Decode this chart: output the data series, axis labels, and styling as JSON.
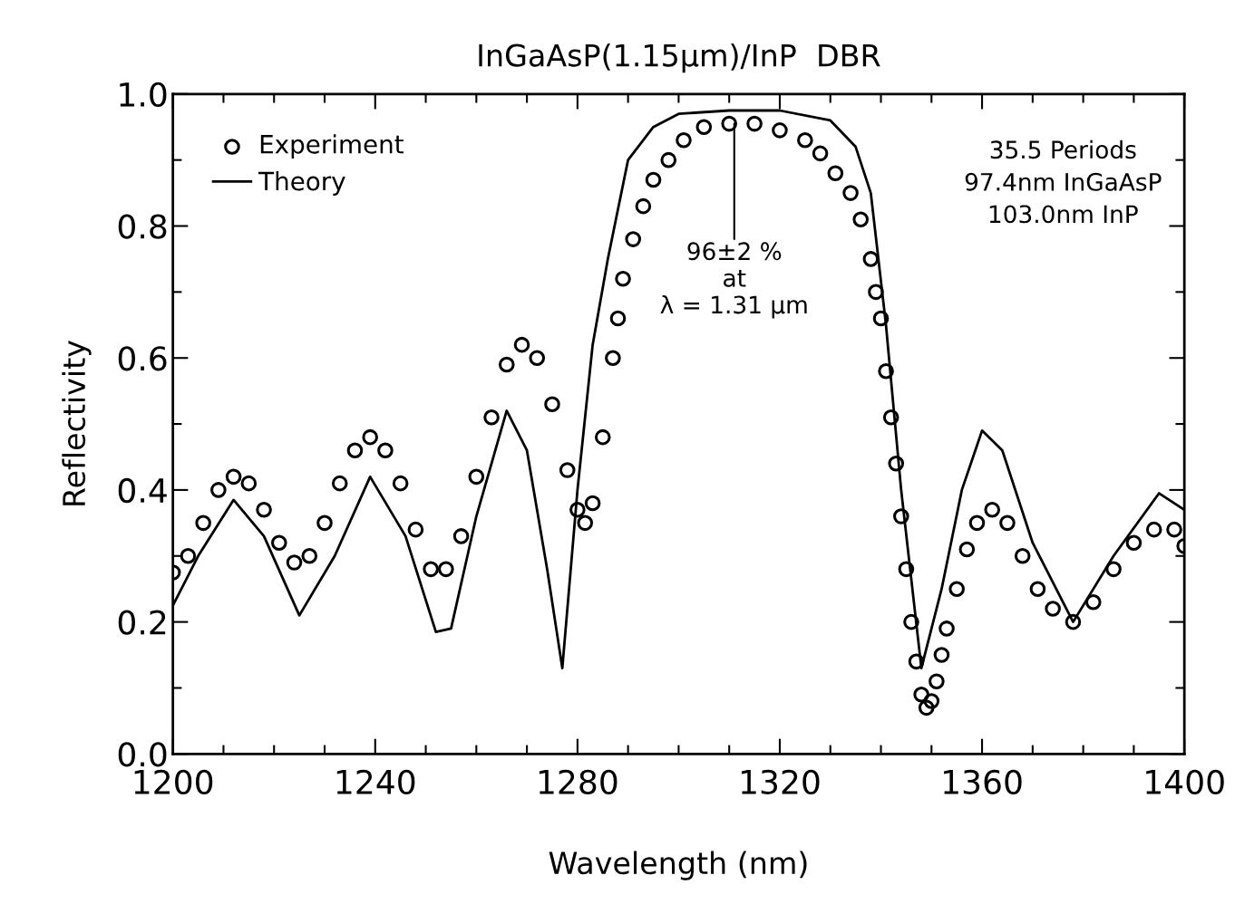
{
  "chart_data": {
    "type": "scatter",
    "title": "InGaAsP(1.15μm)/InP  DBR",
    "xlabel": "Wavelength (nm)",
    "ylabel": "Reflectivity",
    "xlim": [
      1200,
      1400
    ],
    "xticks": [
      1200,
      1240,
      1280,
      1320,
      1360,
      1400
    ],
    "ylim": [
      0,
      1
    ],
    "yticks": [
      {
        "value": 0,
        "label": "0.0"
      },
      {
        "value": 0.2,
        "label": "0.2"
      },
      {
        "value": 0.4,
        "label": "0.4"
      },
      {
        "value": 0.6,
        "label": "0.6"
      },
      {
        "value": 0.8,
        "label": "0.8"
      },
      {
        "value": 1,
        "label": "1.0"
      }
    ],
    "grid": false,
    "legend": "top left",
    "series": [
      {
        "name": "Experiment",
        "marker": "circle",
        "color": "#000000",
        "x": [
          1200,
          1203,
          1206,
          1209,
          1212,
          1215,
          1218,
          1221,
          1224,
          1227,
          1230,
          1233,
          1236,
          1239,
          1242,
          1245,
          1248,
          1251,
          1254,
          1257,
          1260,
          1263,
          1266,
          1269,
          1272,
          1275,
          1278,
          1280,
          1281.5,
          1283,
          1285,
          1287,
          1288,
          1289,
          1291,
          1293,
          1295,
          1298,
          1301,
          1305,
          1310,
          1315,
          1320,
          1325,
          1328,
          1331,
          1334,
          1336,
          1338,
          1339,
          1340,
          1341,
          1342,
          1343,
          1344,
          1345,
          1346,
          1347,
          1348,
          1349,
          1350,
          1351,
          1352,
          1353,
          1355,
          1357,
          1359,
          1362,
          1365,
          1368,
          1371,
          1374,
          1378,
          1382,
          1386,
          1390,
          1394,
          1398,
          1400
        ],
        "values": [
          0.275,
          0.3,
          0.35,
          0.4,
          0.42,
          0.41,
          0.37,
          0.32,
          0.29,
          0.3,
          0.35,
          0.41,
          0.46,
          0.48,
          0.46,
          0.41,
          0.34,
          0.28,
          0.28,
          0.33,
          0.42,
          0.51,
          0.59,
          0.62,
          0.6,
          0.53,
          0.43,
          0.37,
          0.35,
          0.38,
          0.48,
          0.6,
          0.66,
          0.72,
          0.78,
          0.83,
          0.87,
          0.9,
          0.93,
          0.95,
          0.955,
          0.955,
          0.945,
          0.93,
          0.91,
          0.88,
          0.85,
          0.81,
          0.75,
          0.7,
          0.66,
          0.58,
          0.51,
          0.44,
          0.36,
          0.28,
          0.2,
          0.14,
          0.09,
          0.07,
          0.08,
          0.11,
          0.15,
          0.19,
          0.25,
          0.31,
          0.35,
          0.37,
          0.35,
          0.3,
          0.25,
          0.22,
          0.2,
          0.23,
          0.28,
          0.32,
          0.34,
          0.34,
          0.315
        ]
      },
      {
        "name": "Theory",
        "type": "line",
        "line_style": "solid",
        "marker": "none",
        "color": "#000000",
        "x": [
          1200,
          1205,
          1212,
          1218,
          1225,
          1232,
          1239,
          1246,
          1252,
          1255,
          1260,
          1266,
          1270,
          1274,
          1277,
          1280,
          1283,
          1286,
          1290,
          1295,
          1300,
          1310,
          1320,
          1330,
          1335,
          1338,
          1341,
          1344,
          1348,
          1352,
          1356,
          1360,
          1364,
          1370,
          1378,
          1386,
          1395,
          1400
        ],
        "values": [
          0.225,
          0.3,
          0.385,
          0.33,
          0.21,
          0.3,
          0.42,
          0.33,
          0.185,
          0.19,
          0.36,
          0.52,
          0.46,
          0.28,
          0.13,
          0.4,
          0.62,
          0.75,
          0.9,
          0.95,
          0.97,
          0.975,
          0.975,
          0.96,
          0.92,
          0.85,
          0.65,
          0.4,
          0.13,
          0.25,
          0.4,
          0.49,
          0.46,
          0.32,
          0.2,
          0.3,
          0.395,
          0.37
        ]
      }
    ],
    "annotations": [
      "35.5 Periods\n97.4nm InGaAsP\n103.0nm InP",
      {
        "text": "96±2 %\nat\nλ = 1.31 μm",
        "x": 1311,
        "y": 0.955
      }
    ]
  }
}
